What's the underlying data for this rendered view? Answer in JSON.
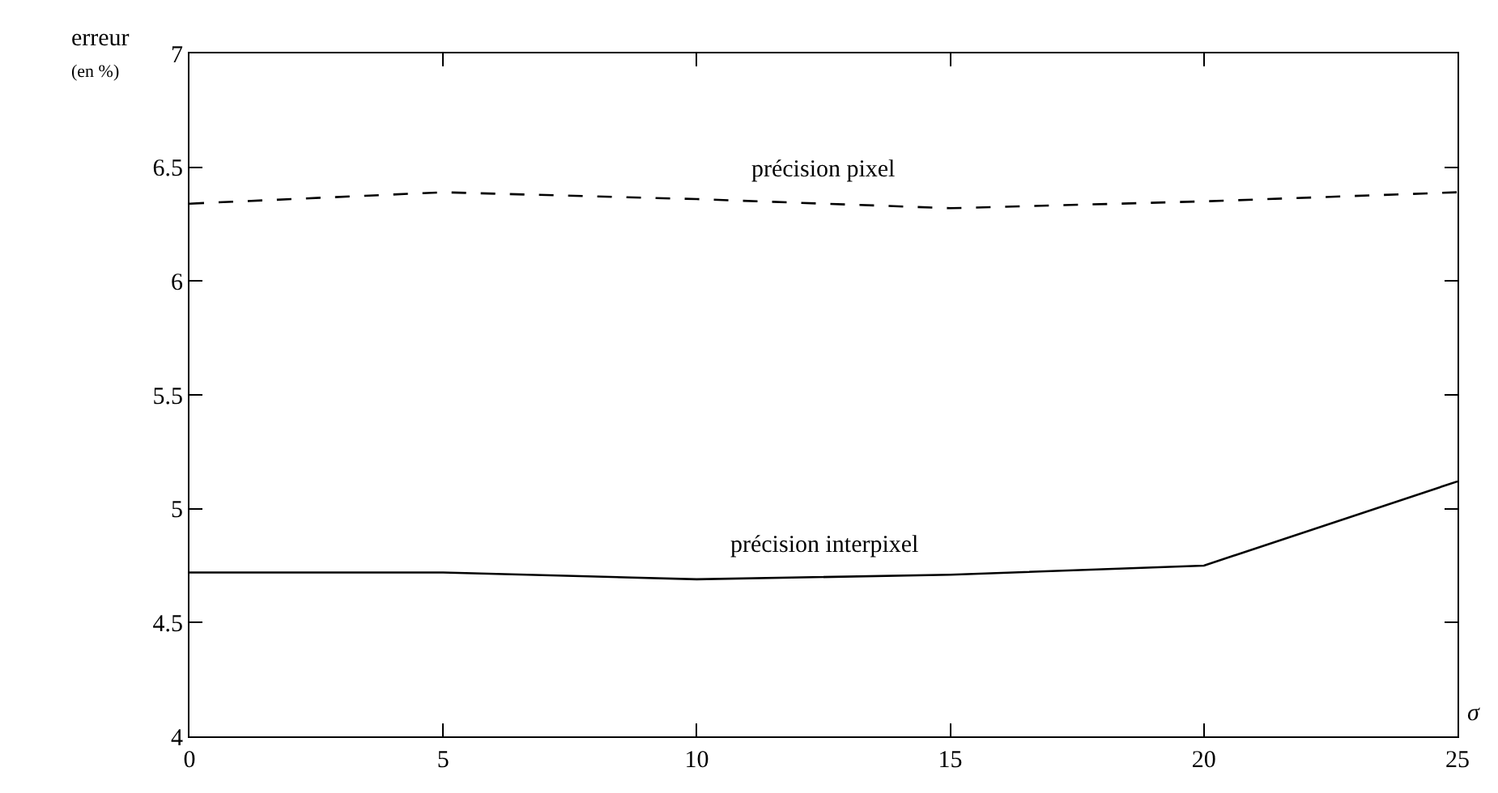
{
  "chart_data": {
    "type": "line",
    "xlabel": "σ",
    "ylabel": "erreur\n(en %)",
    "x": [
      0,
      5,
      10,
      15,
      20,
      25
    ],
    "series": [
      {
        "name": "précision pixel",
        "color": "#000000",
        "line_style": "dashed",
        "values": [
          6.34,
          6.39,
          6.36,
          6.32,
          6.35,
          6.39
        ]
      },
      {
        "name": "précision interpixel",
        "color": "#000000",
        "line_style": "solid",
        "values": [
          4.72,
          4.72,
          4.69,
          4.71,
          4.75,
          5.12
        ]
      }
    ],
    "xlim": [
      0,
      25
    ],
    "xticks": [
      0,
      5,
      10,
      15,
      20,
      25
    ],
    "ylim": [
      4,
      7
    ],
    "yticks": [
      4,
      4.5,
      5,
      5.5,
      6,
      6.5,
      7
    ],
    "legend": false,
    "marker": "none"
  }
}
